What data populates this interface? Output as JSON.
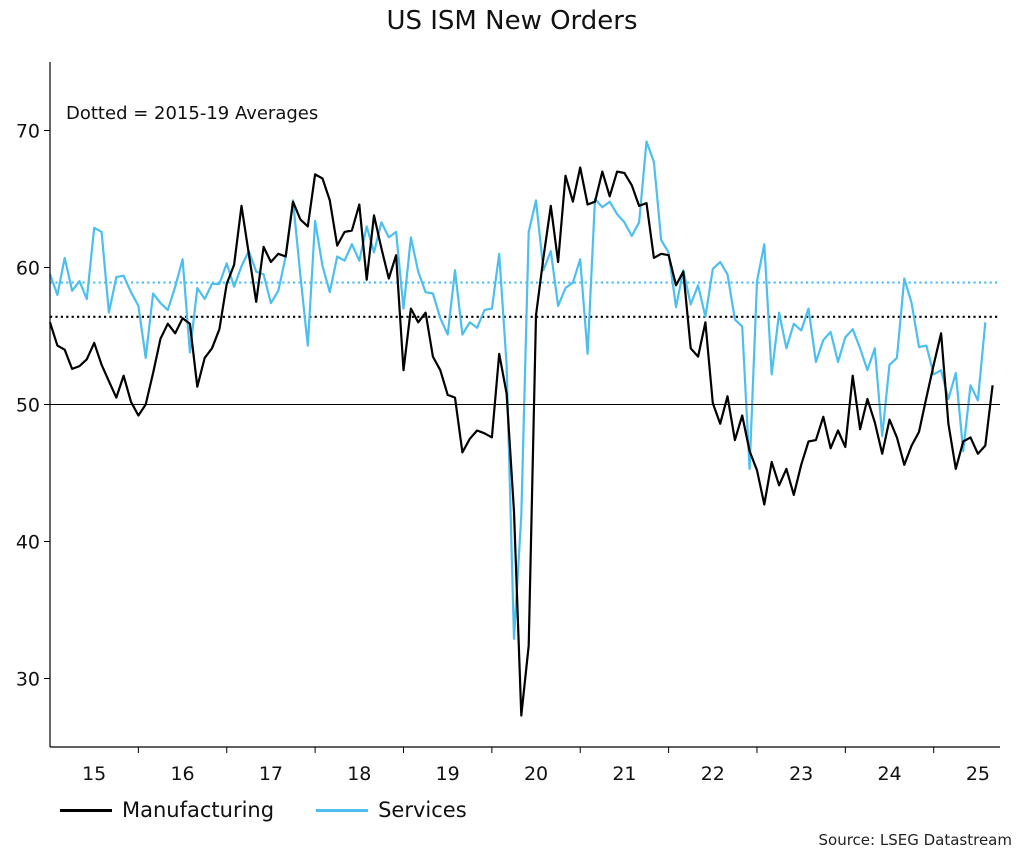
{
  "chart_data": {
    "type": "line",
    "title": "US ISM New Orders",
    "annotation": "Dotted = 2015-19 Averages",
    "source": "Source: LSEG Datastream",
    "ylim": [
      25,
      75
    ],
    "yticks": [
      30,
      40,
      50,
      60,
      70
    ],
    "reference_line": 50,
    "xlim": [
      2015,
      2025.75
    ],
    "xtick_labels": [
      "15",
      "16",
      "17",
      "18",
      "19",
      "20",
      "21",
      "22",
      "23",
      "24",
      "25"
    ],
    "series": [
      {
        "name": "Manufacturing",
        "color": "#000000",
        "average_2015_19": 56.4,
        "values": [
          56.0,
          54.3,
          54.0,
          52.6,
          52.8,
          53.3,
          54.5,
          52.9,
          51.7,
          50.5,
          52.1,
          50.2,
          49.2,
          50.0,
          52.3,
          54.8,
          55.9,
          55.2,
          56.3,
          55.9,
          51.3,
          53.4,
          54.1,
          55.5,
          58.8,
          60.2,
          64.5,
          61.0,
          57.5,
          61.5,
          60.4,
          61.0,
          60.8,
          64.8,
          63.5,
          63.0,
          66.8,
          66.5,
          64.9,
          61.6,
          62.6,
          62.7,
          64.6,
          59.1,
          63.8,
          61.4,
          59.2,
          60.9,
          52.5,
          57.0,
          56.0,
          56.7,
          53.5,
          52.5,
          50.7,
          50.5,
          46.5,
          47.5,
          48.1,
          47.9,
          47.6,
          53.7,
          50.8,
          42.2,
          27.3,
          32.4,
          56.5,
          60.7,
          64.5,
          60.4,
          66.7,
          64.8,
          67.3,
          64.6,
          64.8,
          67.0,
          65.2,
          67.0,
          66.9,
          66.0,
          64.5,
          64.7,
          60.7,
          61.0,
          60.9,
          58.7,
          59.7,
          54.1,
          53.5,
          56.0,
          50.1,
          48.6,
          50.6,
          47.4,
          49.2,
          46.6,
          45.2,
          42.7,
          45.8,
          44.1,
          45.3,
          43.4,
          45.6,
          47.3,
          47.4,
          49.1,
          46.8,
          48.1,
          46.9,
          52.1,
          48.2,
          50.4,
          48.7,
          46.4,
          48.9,
          47.6,
          45.6,
          47.0,
          48.0,
          50.5,
          52.9,
          55.2,
          48.6,
          45.3,
          47.3,
          47.6,
          46.4,
          47.0,
          51.4
        ]
      },
      {
        "name": "Services",
        "color": "#4dbfee",
        "average_2015_19": 58.9,
        "values": [
          59.5,
          58.0,
          60.7,
          58.3,
          59.0,
          57.7,
          62.9,
          62.6,
          56.7,
          59.3,
          59.4,
          58.2,
          57.2,
          53.4,
          58.1,
          57.4,
          56.9,
          58.6,
          60.6,
          53.8,
          58.5,
          57.7,
          58.8,
          58.8,
          60.3,
          58.6,
          60.1,
          61.2,
          59.7,
          59.5,
          57.4,
          58.3,
          60.8,
          64.9,
          59.4,
          54.3,
          63.4,
          60.1,
          58.2,
          60.8,
          60.5,
          61.7,
          60.5,
          63.0,
          61.1,
          63.3,
          62.2,
          62.6,
          57.0,
          62.2,
          59.7,
          58.2,
          58.1,
          56.3,
          55.1,
          59.8,
          55.1,
          56.0,
          55.6,
          56.9,
          57.0,
          61.0,
          52.9,
          32.9,
          41.9,
          62.6,
          64.9,
          59.8,
          61.2,
          57.2,
          58.5,
          58.9,
          60.6,
          53.7,
          65.0,
          64.4,
          64.8,
          63.9,
          63.3,
          62.3,
          63.3,
          69.2,
          67.7,
          62.0,
          61.1,
          57.1,
          59.8,
          57.3,
          58.7,
          56.4,
          59.9,
          60.4,
          59.5,
          56.2,
          55.7,
          45.3,
          59.0,
          61.7,
          52.2,
          56.7,
          54.1,
          55.9,
          55.4,
          57.0,
          53.1,
          54.7,
          55.3,
          53.1,
          54.9,
          55.5,
          54.1,
          52.5,
          54.1,
          47.7,
          52.9,
          53.4,
          59.2,
          57.4,
          54.2,
          54.3,
          52.2,
          52.5,
          50.4,
          52.3,
          46.6,
          51.4,
          50.3,
          56.0
        ]
      }
    ]
  }
}
